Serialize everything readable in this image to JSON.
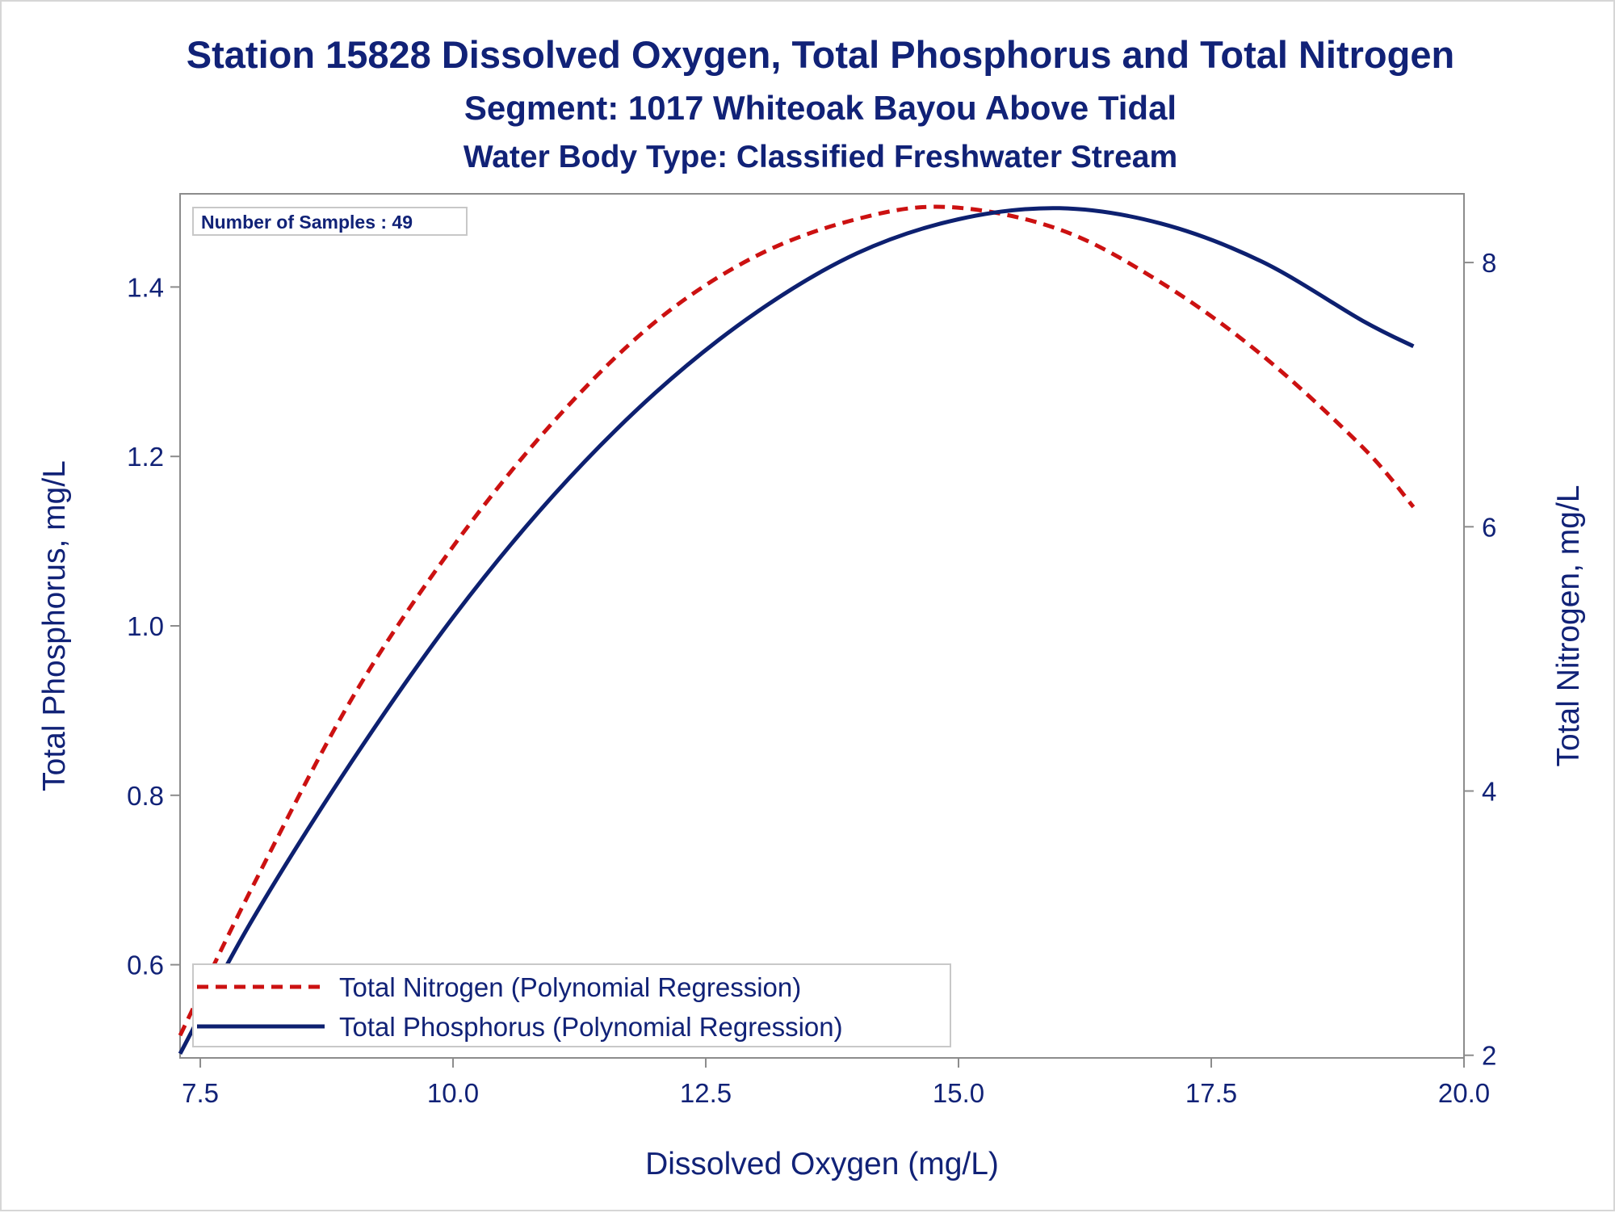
{
  "chart_data": {
    "type": "line",
    "title": "Station 15828  Dissolved Oxygen, Total Phosphorus and Total Nitrogen",
    "subtitle": "Segment: 1017  Whiteoak Bayou Above Tidal",
    "subtitle2": "Water Body Type: Classified Freshwater Stream",
    "xlabel": "Dissolved Oxygen (mg/L)",
    "ylabel": "Total Phosphorus, mg/L",
    "y2label": "Total Nitrogen, mg/L",
    "xlim": [
      7.3,
      20.0
    ],
    "ylim": [
      0.49,
      1.51
    ],
    "y2lim": [
      1.98,
      8.52
    ],
    "x_ticks": [
      "7.5",
      "10.0",
      "12.5",
      "15.0",
      "17.5",
      "20.0"
    ],
    "y_ticks": [
      "0.6",
      "0.8",
      "1.0",
      "1.2",
      "1.4"
    ],
    "y2_ticks": [
      "2",
      "4",
      "6",
      "8"
    ],
    "grid": false,
    "legend_position": "bottom-left",
    "annotation": "Number of Samples : 49",
    "series": [
      {
        "name": "Total Nitrogen (Polynomial Regression)",
        "axis": "right",
        "style": "dashed",
        "color": "#cc1111",
        "x": [
          7.3,
          8.0,
          9.0,
          10.0,
          11.0,
          12.0,
          13.0,
          14.0,
          14.9,
          16.0,
          17.0,
          18.0,
          19.0,
          19.5
        ],
        "y": [
          2.15,
          3.25,
          4.7,
          5.85,
          6.8,
          7.55,
          8.05,
          8.33,
          8.42,
          8.25,
          7.85,
          7.3,
          6.6,
          6.15
        ]
      },
      {
        "name": "Total Phosphorus (Polynomial Regression)",
        "axis": "left",
        "style": "solid",
        "color": "#0d2070",
        "x": [
          7.3,
          8.0,
          9.0,
          10.0,
          11.0,
          12.0,
          13.0,
          14.0,
          15.0,
          16.0,
          17.0,
          18.0,
          19.0,
          19.5
        ],
        "y": [
          0.495,
          0.65,
          0.84,
          1.01,
          1.155,
          1.275,
          1.37,
          1.44,
          1.48,
          1.493,
          1.475,
          1.43,
          1.36,
          1.33
        ]
      }
    ]
  }
}
